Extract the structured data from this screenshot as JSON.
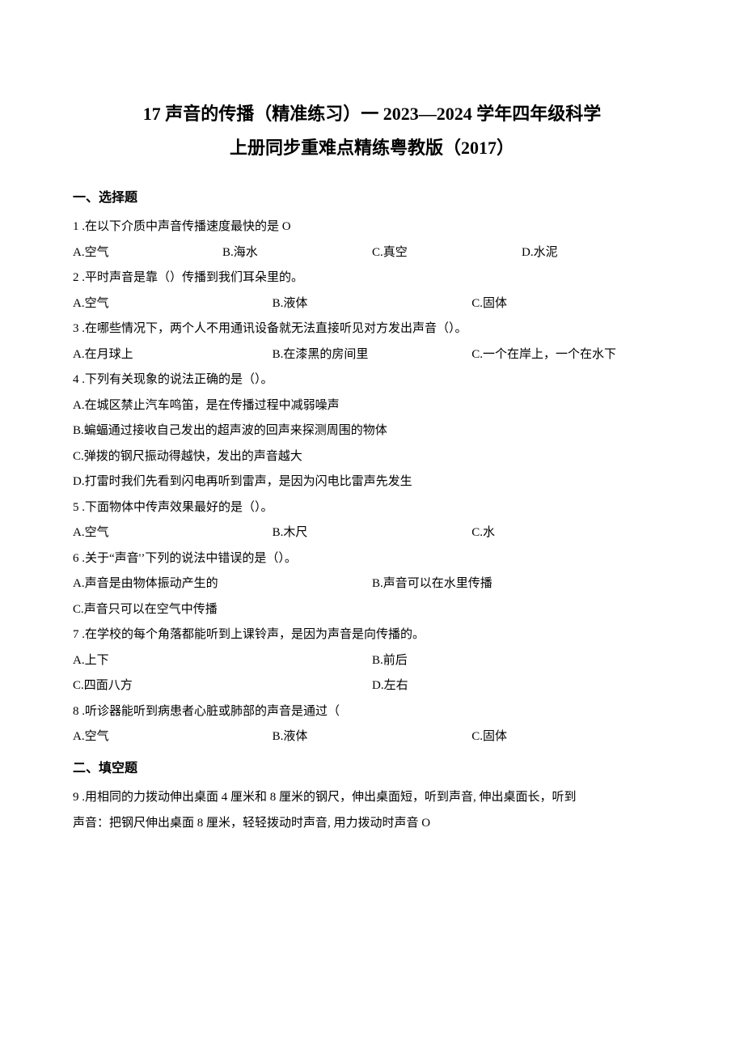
{
  "title_line1": "17 声音的传播（精准练习）一 2023—2024 学年四年级科学",
  "title_line2": "上册同步重难点精练粤教版（2017）",
  "section1": "一、选择题",
  "q1": {
    "text": "1 .在以下介质中声音传播速度最快的是 O",
    "opts": [
      "A.空气",
      "B.海水",
      "C.真空",
      "D.水泥"
    ]
  },
  "q2": {
    "text": "2  .平时声音是靠（）传播到我们耳朵里的。",
    "opts": [
      "A.空气",
      "B.液体",
      "C.固体"
    ]
  },
  "q3": {
    "text": "3  .在哪些情况下，两个人不用通讯设备就无法直接听见对方发出声音（）。",
    "opts": [
      "A.在月球上",
      "B.在漆黑的房间里",
      "C.一个在岸上，一个在水下"
    ]
  },
  "q4": {
    "text": "4  .下列有关现象的说法正确的是（）。",
    "a": "A.在城区禁止汽车鸣笛，是在传播过程中减弱噪声",
    "b": "B.蝙蝠通过接收自己发出的超声波的回声来探测周围的物体",
    "c": "C.弹拨的钢尺振动得越快，发出的声音越大",
    "d": "D.打雷时我们先看到闪电再听到雷声，是因为闪电比雷声先发生"
  },
  "q5": {
    "text": "5  .下面物体中传声效果最好的是（）。",
    "opts": [
      "A.空气",
      "B.木尺",
      "C.水"
    ]
  },
  "q6": {
    "text": "6  .关于“声音'’下列的说法中错误的是（）。",
    "a": "A.声音是由物体振动产生的",
    "b": "B.声音可以在水里传播",
    "c": "C.声音只可以在空气中传播"
  },
  "q7": {
    "text": "7  .在学校的每个角落都能听到上课铃声，是因为声音是向传播的。",
    "a": "A.上下",
    "b": "B.前后",
    "c": "C.四面八方",
    "d": "D.左右"
  },
  "q8": {
    "text": "8  .听诊器能听到病患者心脏或肺部的声音是通过（",
    "opts": [
      "A.空气",
      "B.液体",
      "C.固体"
    ]
  },
  "section2": "二、填空题",
  "q9": {
    "l1": "9  .用相同的力拨动伸出桌面 4 厘米和 8 厘米的钢尺，伸出桌面短，听到声音, 伸出桌面长，听到",
    "l2": "声音：把钢尺伸出桌面 8 厘米，轻轻拨动时声音, 用力拨动时声音 O"
  }
}
